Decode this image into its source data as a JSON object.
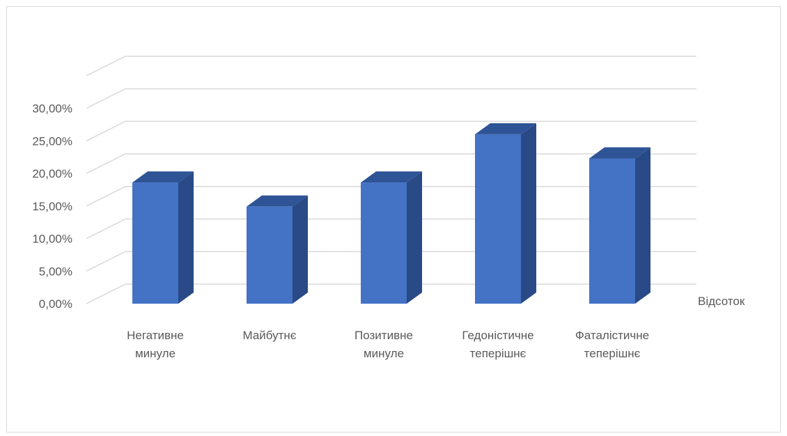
{
  "chart_data": {
    "type": "bar",
    "style": "3d-column",
    "categories": [
      [
        "Негативне",
        "минуле"
      ],
      [
        "Майбутнє"
      ],
      [
        "Позитивне",
        "минуле"
      ],
      [
        "Гедоністичне",
        "теперішнє"
      ],
      [
        "Фаталістичне",
        "теперішнє"
      ]
    ],
    "series": [
      {
        "name": "Відсоток",
        "values": [
          18.6,
          14.9,
          18.6,
          26.0,
          22.3
        ],
        "color": "#4472c4"
      }
    ],
    "y_tick_labels": [
      "0,00%",
      "5,00%",
      "10,00%",
      "15,00%",
      "20,00%",
      "25,00%",
      "30,00%"
    ],
    "ylim": [
      0,
      35
    ],
    "y_major_unit": 5,
    "grid": true,
    "legend": "none",
    "title": "",
    "xlabel": "",
    "ylabel": ""
  },
  "colors": {
    "front": "#4472c4",
    "top": "#2f5496",
    "side": "#294a86",
    "grid": "#d9d9d9",
    "text": "#595959"
  }
}
